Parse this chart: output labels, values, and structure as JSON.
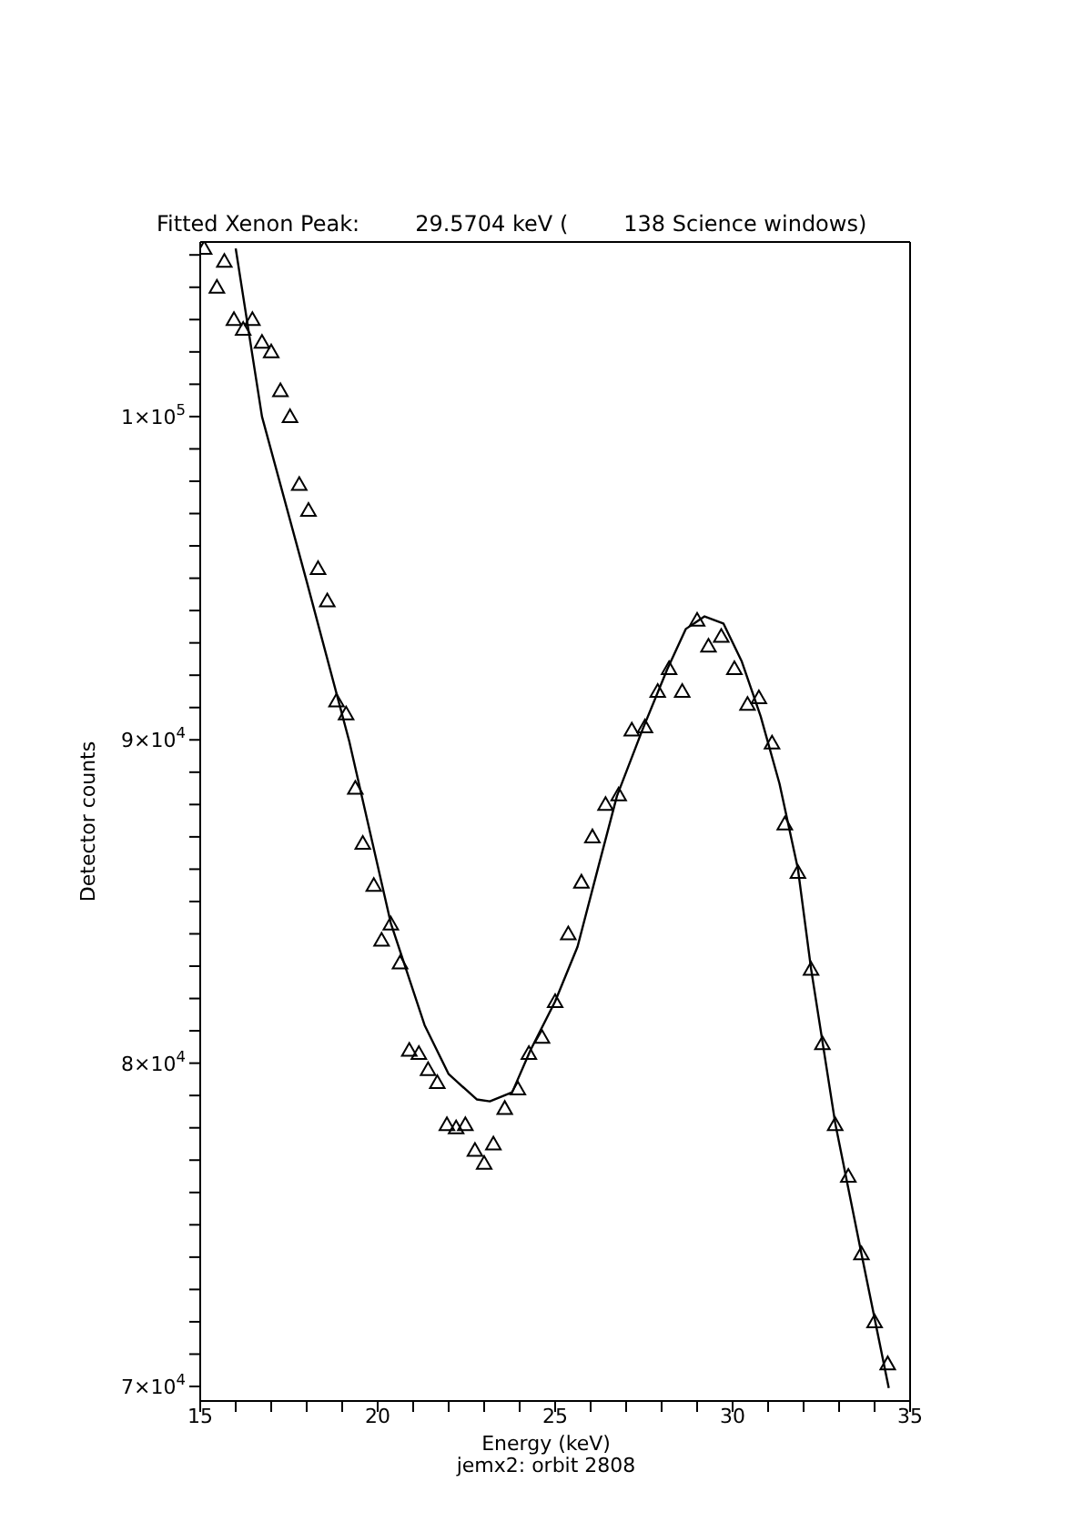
{
  "chart_data": {
    "type": "scatter",
    "title": "Fitted Xenon Peak:        29.5704 keV (        138 Science windows)",
    "xlabel": "Energy (keV)",
    "ylabel": "Detector counts",
    "annotations": [
      "jemx2: orbit 2808"
    ],
    "xlim": [
      15,
      35
    ],
    "xticks": [
      15,
      {
        "value": 16,
        "label": null
      },
      {
        "value": 17,
        "label": null
      },
      {
        "value": 18,
        "label": null
      },
      {
        "value": 19,
        "label": null
      },
      20,
      {
        "value": 21,
        "label": null
      },
      {
        "value": 22,
        "label": null
      },
      {
        "value": 23,
        "label": null
      },
      {
        "value": 24,
        "label": null
      },
      25,
      {
        "value": 26,
        "label": null
      },
      {
        "value": 27,
        "label": null
      },
      {
        "value": 28,
        "label": null
      },
      {
        "value": 29,
        "label": null
      },
      30,
      {
        "value": 31,
        "label": null
      },
      {
        "value": 32,
        "label": null
      },
      {
        "value": 33,
        "label": null
      },
      {
        "value": 34,
        "label": null
      },
      35
    ],
    "ylim": [
      69550,
      105400
    ],
    "yticks": [
      {
        "value": 70000,
        "label": "7×10$^{4}$"
      },
      {
        "value": 71000,
        "label": null
      },
      {
        "value": 72000,
        "label": null
      },
      {
        "value": 73000,
        "label": null
      },
      {
        "value": 74000,
        "label": null
      },
      {
        "value": 75000,
        "label": null
      },
      {
        "value": 76000,
        "label": null
      },
      {
        "value": 77000,
        "label": null
      },
      {
        "value": 78000,
        "label": null
      },
      {
        "value": 79000,
        "label": null
      },
      {
        "value": 80000,
        "label": "8×10$^{4}$"
      },
      {
        "value": 81000,
        "label": null
      },
      {
        "value": 82000,
        "label": null
      },
      {
        "value": 83000,
        "label": null
      },
      {
        "value": 84000,
        "label": null
      },
      {
        "value": 85000,
        "label": null
      },
      {
        "value": 86000,
        "label": null
      },
      {
        "value": 87000,
        "label": null
      },
      {
        "value": 88000,
        "label": null
      },
      {
        "value": 89000,
        "label": null
      },
      {
        "value": 90000,
        "label": "9×10$^{4}$"
      },
      {
        "value": 91000,
        "label": null
      },
      {
        "value": 92000,
        "label": null
      },
      {
        "value": 93000,
        "label": null
      },
      {
        "value": 94000,
        "label": null
      },
      {
        "value": 95000,
        "label": null
      },
      {
        "value": 96000,
        "label": null
      },
      {
        "value": 97000,
        "label": null
      },
      {
        "value": 98000,
        "label": null
      },
      {
        "value": 99000,
        "label": null
      },
      {
        "value": 100000,
        "label": "1×10$^{5}$"
      },
      {
        "value": 101000,
        "label": null
      },
      {
        "value": 102000,
        "label": null
      },
      {
        "value": 103000,
        "label": null
      },
      {
        "value": 104000,
        "label": null
      },
      {
        "value": 105000,
        "label": null
      }
    ],
    "grid": false,
    "legend": false,
    "series": [
      {
        "type": "scatter",
        "marker": "triangle",
        "color": "#000000",
        "x": [
          15.11,
          15.47,
          15.68,
          15.95,
          16.21,
          16.47,
          16.74,
          17.0,
          17.26,
          17.53,
          17.79,
          18.05,
          18.32,
          18.58,
          18.84,
          19.11,
          19.37,
          19.58,
          19.89,
          20.11,
          20.37,
          20.63,
          20.89,
          21.16,
          21.42,
          21.68,
          21.95,
          22.21,
          22.47,
          22.74,
          23.0,
          23.26,
          23.58,
          23.95,
          24.26,
          24.63,
          25.0,
          25.37,
          25.74,
          26.05,
          26.42,
          26.79,
          27.16,
          27.53,
          27.89,
          28.21,
          28.58,
          29.0,
          29.32,
          29.68,
          30.05,
          30.42,
          30.74,
          31.11,
          31.47,
          31.84,
          32.21,
          32.53,
          32.89,
          33.26,
          33.63,
          34.0,
          34.37
        ],
        "values": [
          105200,
          104000,
          104800,
          103000,
          102700,
          103000,
          102300,
          102000,
          100800,
          100000,
          97900,
          97100,
          95300,
          94300,
          91200,
          90800,
          88500,
          86800,
          85500,
          83800,
          84300,
          83100,
          80400,
          80300,
          79800,
          79400,
          78100,
          78000,
          78100,
          77300,
          76900,
          77500,
          78600,
          79200,
          80300,
          80800,
          81900,
          84000,
          85600,
          87000,
          88000,
          88300,
          90300,
          90400,
          91500,
          92200,
          91500,
          93700,
          92900,
          93200,
          92200,
          91100,
          91300,
          89900,
          87400,
          85900,
          82900,
          80600,
          78100,
          76500,
          74100,
          72000,
          70700
        ]
      },
      {
        "type": "line",
        "marker": "none",
        "line_style": "solid",
        "color": "#000000",
        "x": [
          16.0,
          16.74,
          18.0,
          19.2,
          20.37,
          21.32,
          22.0,
          22.79,
          23.16,
          23.79,
          24.3,
          25.0,
          25.63,
          26.2,
          26.74,
          27.47,
          28.16,
          28.68,
          29.21,
          29.74,
          30.26,
          30.79,
          31.32,
          31.84,
          32.21,
          32.89,
          33.63,
          34.4
        ],
        "values": [
          105200,
          100000,
          94900,
          89950,
          84330,
          81180,
          79660,
          78880,
          78820,
          79100,
          80390,
          81910,
          83600,
          86000,
          88260,
          90340,
          92190,
          93430,
          93820,
          93600,
          92420,
          90730,
          88650,
          86010,
          82920,
          78150,
          74100,
          69950
        ]
      }
    ]
  }
}
